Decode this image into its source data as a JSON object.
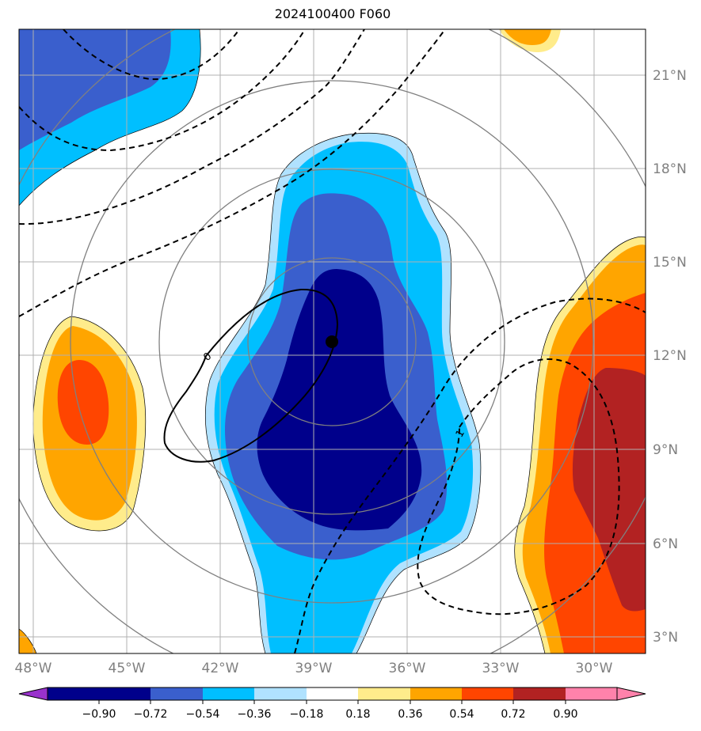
{
  "title": "2024100400 F060",
  "map": {
    "lon_range": [
      -48.3,
      -29.0
    ],
    "lat_range": [
      2.3,
      22.3
    ],
    "lon_ticks": [
      "48°W",
      "45°W",
      "42°W",
      "39°W",
      "36°W",
      "33°W",
      "30°W"
    ],
    "lat_ticks": [
      "3°N",
      "6°N",
      "9°N",
      "12°N",
      "15°N",
      "18°N",
      "21°N"
    ],
    "storm_center": {
      "lon": -38.4,
      "lat": 12.5
    },
    "range_rings_deg": [
      2.5,
      5.5,
      8.5,
      11.5
    ],
    "contour_labels": [
      "0",
      "1"
    ]
  },
  "colorbar": {
    "ticks": [
      "−0.90",
      "−0.72",
      "−0.54",
      "−0.36",
      "−0.18",
      "0.18",
      "0.36",
      "0.54",
      "0.72",
      "0.90"
    ],
    "colors": [
      "#9932CC",
      "#00008B",
      "#3A5FCD",
      "#00BFFF",
      "#B0E2FF",
      "#FFFFFF",
      "#FFEC8B",
      "#FFA500",
      "#FF4500",
      "#B22222",
      "#FF82AB"
    ]
  }
}
